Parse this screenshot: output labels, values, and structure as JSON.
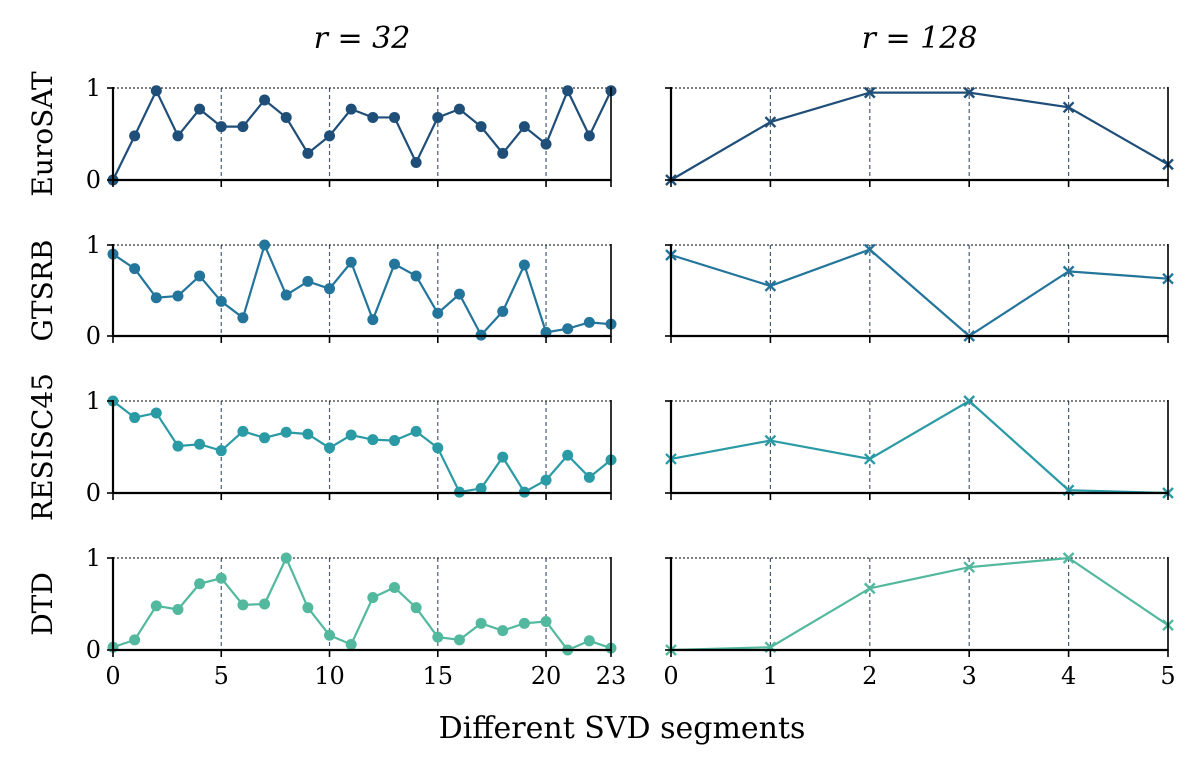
{
  "chart_data": {
    "type": "line",
    "xlabel": "Different SVD segments",
    "ylim": [
      0,
      1
    ],
    "yticks": [
      0,
      1
    ],
    "grid": "vertical dashed lines at x ticks",
    "columns": [
      {
        "title": "r = 32",
        "xlim": [
          0,
          23
        ],
        "xticks": [
          0,
          5,
          10,
          15,
          20,
          23
        ],
        "marker": "circle"
      },
      {
        "title": "r = 128",
        "xlim": [
          0,
          5
        ],
        "xticks": [
          0,
          1,
          2,
          3,
          4,
          5
        ],
        "marker": "x"
      }
    ],
    "rows": [
      {
        "name": "EuroSAT",
        "color": "#1f4e79",
        "series": [
          [
            0.0,
            0.48,
            0.97,
            0.48,
            0.77,
            0.58,
            0.58,
            0.87,
            0.68,
            0.29,
            0.48,
            0.77,
            0.68,
            0.68,
            0.19,
            0.68,
            0.77,
            0.58,
            0.29,
            0.58,
            0.39,
            0.97,
            0.48,
            0.97
          ],
          [
            0.0,
            0.63,
            0.95,
            0.95,
            0.79,
            0.17
          ]
        ]
      },
      {
        "name": "GTSRB",
        "color": "#23759c",
        "series": [
          [
            0.9,
            0.74,
            0.42,
            0.44,
            0.66,
            0.38,
            0.2,
            1.0,
            0.45,
            0.6,
            0.52,
            0.81,
            0.18,
            0.79,
            0.66,
            0.25,
            0.46,
            0.01,
            0.27,
            0.78,
            0.04,
            0.08,
            0.15,
            0.13
          ],
          [
            0.89,
            0.55,
            0.95,
            0.0,
            0.71,
            0.63
          ]
        ]
      },
      {
        "name": "RESISC45",
        "color": "#2a9aa5",
        "series": [
          [
            1.0,
            0.82,
            0.87,
            0.51,
            0.53,
            0.46,
            0.67,
            0.6,
            0.66,
            0.64,
            0.49,
            0.63,
            0.58,
            0.57,
            0.67,
            0.49,
            0.01,
            0.05,
            0.39,
            0.01,
            0.14,
            0.41,
            0.17,
            0.36
          ],
          [
            0.37,
            0.57,
            0.37,
            1.0,
            0.03,
            0.0
          ]
        ]
      },
      {
        "name": "DTD",
        "color": "#52b89e",
        "series": [
          [
            0.03,
            0.11,
            0.48,
            0.44,
            0.72,
            0.78,
            0.49,
            0.5,
            1.0,
            0.46,
            0.16,
            0.06,
            0.57,
            0.68,
            0.46,
            0.14,
            0.11,
            0.29,
            0.21,
            0.29,
            0.31,
            0.0,
            0.1,
            0.02
          ],
          [
            0.0,
            0.03,
            0.67,
            0.9,
            1.0,
            0.27
          ]
        ]
      }
    ]
  }
}
